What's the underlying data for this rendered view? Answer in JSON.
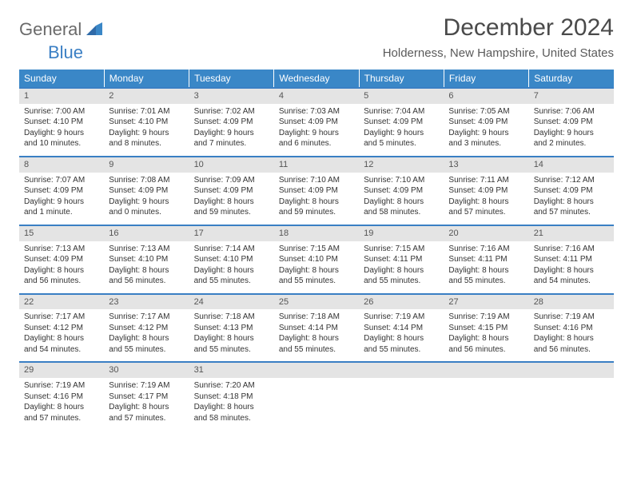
{
  "logo": {
    "general": "General",
    "blue": "Blue"
  },
  "title": "December 2024",
  "location": "Holderness, New Hampshire, United States",
  "dayHeaders": [
    "Sunday",
    "Monday",
    "Tuesday",
    "Wednesday",
    "Thursday",
    "Friday",
    "Saturday"
  ],
  "colors": {
    "header_bg": "#3a87c7",
    "rule": "#3a7fc4",
    "datebar_bg": "#e4e4e4",
    "text": "#333333"
  },
  "weeks": [
    [
      {
        "date": "1",
        "sunrise": "Sunrise: 7:00 AM",
        "sunset": "Sunset: 4:10 PM",
        "daylight": "Daylight: 9 hours and 10 minutes."
      },
      {
        "date": "2",
        "sunrise": "Sunrise: 7:01 AM",
        "sunset": "Sunset: 4:10 PM",
        "daylight": "Daylight: 9 hours and 8 minutes."
      },
      {
        "date": "3",
        "sunrise": "Sunrise: 7:02 AM",
        "sunset": "Sunset: 4:09 PM",
        "daylight": "Daylight: 9 hours and 7 minutes."
      },
      {
        "date": "4",
        "sunrise": "Sunrise: 7:03 AM",
        "sunset": "Sunset: 4:09 PM",
        "daylight": "Daylight: 9 hours and 6 minutes."
      },
      {
        "date": "5",
        "sunrise": "Sunrise: 7:04 AM",
        "sunset": "Sunset: 4:09 PM",
        "daylight": "Daylight: 9 hours and 5 minutes."
      },
      {
        "date": "6",
        "sunrise": "Sunrise: 7:05 AM",
        "sunset": "Sunset: 4:09 PM",
        "daylight": "Daylight: 9 hours and 3 minutes."
      },
      {
        "date": "7",
        "sunrise": "Sunrise: 7:06 AM",
        "sunset": "Sunset: 4:09 PM",
        "daylight": "Daylight: 9 hours and 2 minutes."
      }
    ],
    [
      {
        "date": "8",
        "sunrise": "Sunrise: 7:07 AM",
        "sunset": "Sunset: 4:09 PM",
        "daylight": "Daylight: 9 hours and 1 minute."
      },
      {
        "date": "9",
        "sunrise": "Sunrise: 7:08 AM",
        "sunset": "Sunset: 4:09 PM",
        "daylight": "Daylight: 9 hours and 0 minutes."
      },
      {
        "date": "10",
        "sunrise": "Sunrise: 7:09 AM",
        "sunset": "Sunset: 4:09 PM",
        "daylight": "Daylight: 8 hours and 59 minutes."
      },
      {
        "date": "11",
        "sunrise": "Sunrise: 7:10 AM",
        "sunset": "Sunset: 4:09 PM",
        "daylight": "Daylight: 8 hours and 59 minutes."
      },
      {
        "date": "12",
        "sunrise": "Sunrise: 7:10 AM",
        "sunset": "Sunset: 4:09 PM",
        "daylight": "Daylight: 8 hours and 58 minutes."
      },
      {
        "date": "13",
        "sunrise": "Sunrise: 7:11 AM",
        "sunset": "Sunset: 4:09 PM",
        "daylight": "Daylight: 8 hours and 57 minutes."
      },
      {
        "date": "14",
        "sunrise": "Sunrise: 7:12 AM",
        "sunset": "Sunset: 4:09 PM",
        "daylight": "Daylight: 8 hours and 57 minutes."
      }
    ],
    [
      {
        "date": "15",
        "sunrise": "Sunrise: 7:13 AM",
        "sunset": "Sunset: 4:09 PM",
        "daylight": "Daylight: 8 hours and 56 minutes."
      },
      {
        "date": "16",
        "sunrise": "Sunrise: 7:13 AM",
        "sunset": "Sunset: 4:10 PM",
        "daylight": "Daylight: 8 hours and 56 minutes."
      },
      {
        "date": "17",
        "sunrise": "Sunrise: 7:14 AM",
        "sunset": "Sunset: 4:10 PM",
        "daylight": "Daylight: 8 hours and 55 minutes."
      },
      {
        "date": "18",
        "sunrise": "Sunrise: 7:15 AM",
        "sunset": "Sunset: 4:10 PM",
        "daylight": "Daylight: 8 hours and 55 minutes."
      },
      {
        "date": "19",
        "sunrise": "Sunrise: 7:15 AM",
        "sunset": "Sunset: 4:11 PM",
        "daylight": "Daylight: 8 hours and 55 minutes."
      },
      {
        "date": "20",
        "sunrise": "Sunrise: 7:16 AM",
        "sunset": "Sunset: 4:11 PM",
        "daylight": "Daylight: 8 hours and 55 minutes."
      },
      {
        "date": "21",
        "sunrise": "Sunrise: 7:16 AM",
        "sunset": "Sunset: 4:11 PM",
        "daylight": "Daylight: 8 hours and 54 minutes."
      }
    ],
    [
      {
        "date": "22",
        "sunrise": "Sunrise: 7:17 AM",
        "sunset": "Sunset: 4:12 PM",
        "daylight": "Daylight: 8 hours and 54 minutes."
      },
      {
        "date": "23",
        "sunrise": "Sunrise: 7:17 AM",
        "sunset": "Sunset: 4:12 PM",
        "daylight": "Daylight: 8 hours and 55 minutes."
      },
      {
        "date": "24",
        "sunrise": "Sunrise: 7:18 AM",
        "sunset": "Sunset: 4:13 PM",
        "daylight": "Daylight: 8 hours and 55 minutes."
      },
      {
        "date": "25",
        "sunrise": "Sunrise: 7:18 AM",
        "sunset": "Sunset: 4:14 PM",
        "daylight": "Daylight: 8 hours and 55 minutes."
      },
      {
        "date": "26",
        "sunrise": "Sunrise: 7:19 AM",
        "sunset": "Sunset: 4:14 PM",
        "daylight": "Daylight: 8 hours and 55 minutes."
      },
      {
        "date": "27",
        "sunrise": "Sunrise: 7:19 AM",
        "sunset": "Sunset: 4:15 PM",
        "daylight": "Daylight: 8 hours and 56 minutes."
      },
      {
        "date": "28",
        "sunrise": "Sunrise: 7:19 AM",
        "sunset": "Sunset: 4:16 PM",
        "daylight": "Daylight: 8 hours and 56 minutes."
      }
    ],
    [
      {
        "date": "29",
        "sunrise": "Sunrise: 7:19 AM",
        "sunset": "Sunset: 4:16 PM",
        "daylight": "Daylight: 8 hours and 57 minutes."
      },
      {
        "date": "30",
        "sunrise": "Sunrise: 7:19 AM",
        "sunset": "Sunset: 4:17 PM",
        "daylight": "Daylight: 8 hours and 57 minutes."
      },
      {
        "date": "31",
        "sunrise": "Sunrise: 7:20 AM",
        "sunset": "Sunset: 4:18 PM",
        "daylight": "Daylight: 8 hours and 58 minutes."
      },
      {
        "empty": true
      },
      {
        "empty": true
      },
      {
        "empty": true
      },
      {
        "empty": true
      }
    ]
  ]
}
